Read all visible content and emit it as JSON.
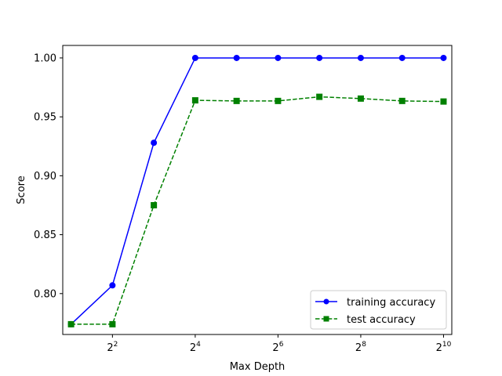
{
  "chart_data": {
    "type": "line",
    "xlabel": "Max Depth",
    "ylabel": "Score",
    "x_scale": "log2",
    "xlim": [
      1.74,
      1176
    ],
    "ylim": [
      0.7653,
      1.0106
    ],
    "x_ticks": [
      {
        "value": 4,
        "base": "2",
        "exp": "2"
      },
      {
        "value": 16,
        "base": "2",
        "exp": "4"
      },
      {
        "value": 64,
        "base": "2",
        "exp": "6"
      },
      {
        "value": 256,
        "base": "2",
        "exp": "8"
      },
      {
        "value": 1024,
        "base": "2",
        "exp": "10"
      }
    ],
    "y_ticks": [
      "0.80",
      "0.85",
      "0.90",
      "0.95",
      "1.00"
    ],
    "grid": false,
    "legend_position": "lower right",
    "x": [
      2,
      4,
      8,
      16,
      32,
      64,
      128,
      256,
      512,
      1024
    ],
    "series": [
      {
        "name": "training accuracy",
        "color": "#0000ff",
        "linestyle": "solid",
        "marker": "circle",
        "values": [
          0.774,
          0.807,
          0.928,
          1.0,
          1.0,
          1.0,
          1.0,
          1.0,
          1.0,
          1.0
        ]
      },
      {
        "name": "test accuracy",
        "color": "#008000",
        "linestyle": "dashed",
        "marker": "square",
        "values": [
          0.774,
          0.774,
          0.875,
          0.964,
          0.9635,
          0.9635,
          0.967,
          0.9655,
          0.9635,
          0.963
        ]
      }
    ]
  }
}
